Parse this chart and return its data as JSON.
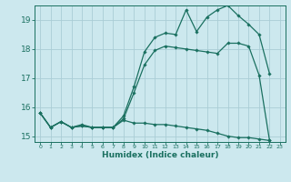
{
  "xlabel": "Humidex (Indice chaleur)",
  "ylabel": "",
  "background_color": "#cce8ee",
  "grid_color": "#aacdd6",
  "line_color": "#1a7060",
  "xlim": [
    -0.5,
    23.5
  ],
  "ylim": [
    14.8,
    19.5
  ],
  "yticks": [
    15,
    16,
    17,
    18,
    19
  ],
  "xticks": [
    0,
    1,
    2,
    3,
    4,
    5,
    6,
    7,
    8,
    9,
    10,
    11,
    12,
    13,
    14,
    15,
    16,
    17,
    18,
    19,
    20,
    21,
    22,
    23
  ],
  "series": {
    "line1_x": [
      0,
      1,
      2,
      3,
      4,
      5,
      6,
      7,
      8,
      9,
      10,
      11,
      12,
      13,
      14,
      15,
      16,
      17,
      18,
      19,
      20,
      21,
      22
    ],
    "line1_y": [
      15.8,
      15.3,
      15.5,
      15.3,
      15.4,
      15.3,
      15.3,
      15.3,
      15.6,
      16.5,
      17.45,
      17.95,
      18.1,
      18.05,
      18.0,
      17.95,
      17.9,
      17.85,
      18.2,
      18.2,
      18.1,
      17.1,
      14.85
    ],
    "line2_x": [
      0,
      1,
      2,
      3,
      4,
      5,
      6,
      7,
      8,
      9,
      10,
      11,
      12,
      13,
      14,
      15,
      16,
      17,
      18,
      19,
      20,
      21,
      22
    ],
    "line2_y": [
      15.8,
      15.3,
      15.5,
      15.3,
      15.35,
      15.3,
      15.3,
      15.3,
      15.7,
      16.7,
      17.9,
      18.4,
      18.55,
      18.5,
      19.35,
      18.6,
      19.1,
      19.35,
      19.5,
      19.15,
      18.85,
      18.5,
      17.15
    ],
    "line3_x": [
      0,
      1,
      2,
      3,
      4,
      5,
      6,
      7,
      8,
      9,
      10,
      11,
      12,
      13,
      14,
      15,
      16,
      17,
      18,
      19,
      20,
      21,
      22
    ],
    "line3_y": [
      15.8,
      15.3,
      15.5,
      15.3,
      15.35,
      15.3,
      15.3,
      15.3,
      15.55,
      15.45,
      15.45,
      15.4,
      15.4,
      15.35,
      15.3,
      15.25,
      15.2,
      15.1,
      15.0,
      14.95,
      14.95,
      14.9,
      14.85
    ]
  }
}
